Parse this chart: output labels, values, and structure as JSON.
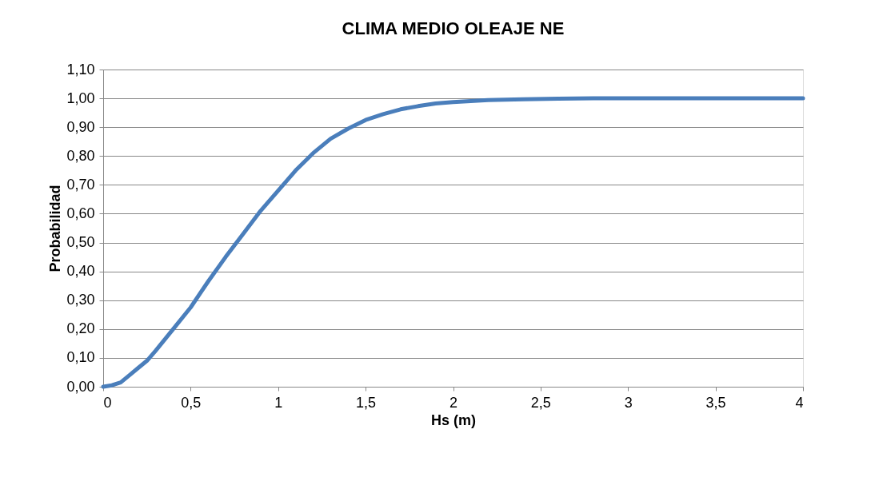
{
  "chart_data": {
    "type": "line",
    "title": "CLIMA MEDIO OLEAJE NE",
    "xlabel": "Hs (m)",
    "ylabel": "Probabilidad",
    "x": [
      0,
      0.05,
      0.1,
      0.15,
      0.2,
      0.25,
      0.3,
      0.4,
      0.5,
      0.6,
      0.7,
      0.8,
      0.9,
      1.0,
      1.1,
      1.2,
      1.3,
      1.4,
      1.5,
      1.6,
      1.7,
      1.8,
      1.9,
      2.0,
      2.2,
      2.4,
      2.6,
      2.8,
      3.0,
      3.5,
      4.0
    ],
    "series": [
      {
        "color": "#4a7ebb",
        "values": [
          0,
          0.005,
          0.015,
          0.04,
          0.065,
          0.09,
          0.125,
          0.2,
          0.275,
          0.365,
          0.45,
          0.53,
          0.61,
          0.68,
          0.75,
          0.81,
          0.86,
          0.895,
          0.925,
          0.945,
          0.962,
          0.973,
          0.982,
          0.987,
          0.994,
          0.997,
          0.999,
          1.0,
          1.0,
          1.0,
          1.0
        ]
      }
    ],
    "xlim": [
      0,
      4
    ],
    "xticks": [
      0,
      {
        "value": 0.5,
        "label": "0,5"
      },
      1,
      {
        "value": 1.5,
        "label": "1,5"
      },
      2,
      {
        "value": 2.5,
        "label": "2,5"
      },
      3,
      {
        "value": 3.5,
        "label": "3,5"
      },
      4
    ],
    "ylim": [
      0,
      1.1
    ],
    "yticks": [
      {
        "value": 0,
        "label": "0,00"
      },
      {
        "value": 0.1,
        "label": "0,10"
      },
      {
        "value": 0.2,
        "label": "0,20"
      },
      {
        "value": 0.3,
        "label": "0,30"
      },
      {
        "value": 0.4,
        "label": "0,40"
      },
      {
        "value": 0.5,
        "label": "0,50"
      },
      {
        "value": 0.6,
        "label": "0,60"
      },
      {
        "value": 0.7,
        "label": "0,70"
      },
      {
        "value": 0.8,
        "label": "0,80"
      },
      {
        "value": 0.9,
        "label": "0,90"
      },
      {
        "value": 1.0,
        "label": "1,00"
      },
      {
        "value": 1.1,
        "label": "1,10"
      }
    ],
    "grid": "y",
    "line_style": "solid",
    "marker": "none"
  }
}
